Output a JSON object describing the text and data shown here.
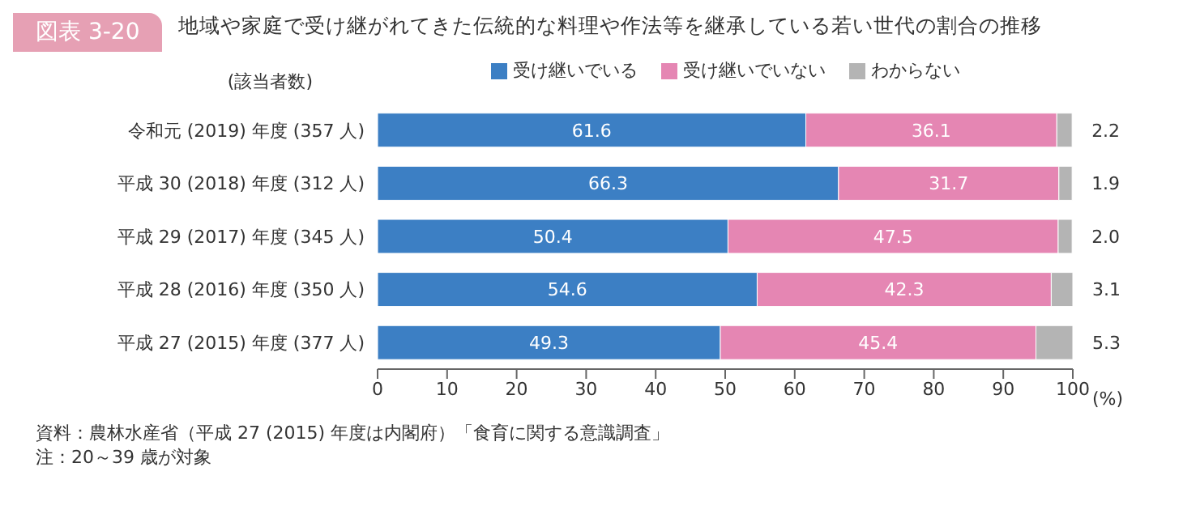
{
  "chart_data": {
    "type": "bar",
    "orientation": "horizontal",
    "stacked": true,
    "title": "地域や家庭で受け継がれてきた伝統的な料理や作法等を継承している若い世代の割合の推移",
    "subtitle": "図表 3-20",
    "ylabel": "(該当者数)",
    "xlabel": "(%)",
    "categories": [
      "令和元 (2019) 年度 (357 人)",
      "平成 30 (2018) 年度 (312 人)",
      "平成 29 (2017) 年度 (345 人)",
      "平成 28 (2016) 年度 (350 人)",
      "平成 27 (2015) 年度 (377 人)"
    ],
    "series": [
      {
        "name": "受け継いでいる",
        "color": "#3c7fc4",
        "values": [
          61.6,
          66.3,
          50.4,
          54.6,
          49.3
        ],
        "value_labels": [
          "61.6",
          "66.3",
          "50.4",
          "54.6",
          "49.3"
        ]
      },
      {
        "name": "受け継いでいない",
        "color": "#e586b3",
        "values": [
          36.1,
          31.7,
          47.5,
          42.3,
          45.4
        ],
        "value_labels": [
          "36.1",
          "31.7",
          "47.5",
          "42.3",
          "45.4"
        ]
      },
      {
        "name": "わからない",
        "color": "#b4b4b4",
        "values": [
          2.2,
          1.9,
          2.0,
          3.1,
          5.3
        ],
        "value_labels": [
          "2.2",
          "1.9",
          "2.0",
          "3.1",
          "5.3"
        ]
      }
    ],
    "xlim": [
      0,
      100
    ],
    "xticks": [
      0,
      10,
      20,
      30,
      40,
      50,
      60,
      70,
      80,
      90,
      100
    ],
    "legend": "top",
    "grid": false,
    "annotations": [
      "資料：農林水産省（平成 27 (2015) 年度は内閣府）「食育に関する意識調査」",
      "注：20～39 歳が対象"
    ]
  }
}
